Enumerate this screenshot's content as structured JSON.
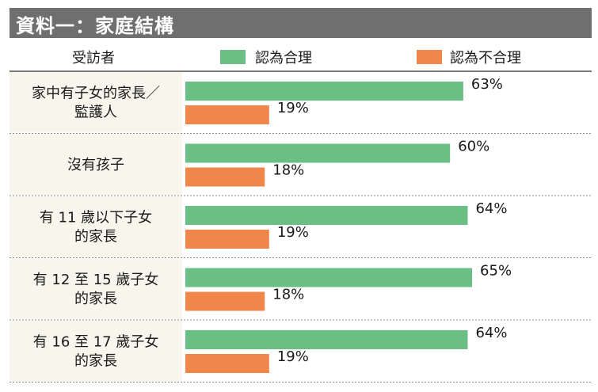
{
  "title": "資料一：家庭結構",
  "header": {
    "respondent_label": "受訪者",
    "legend": [
      {
        "name": "認為合理",
        "color": "#6cbf84"
      },
      {
        "name": "認為不合理",
        "color": "#f0874a"
      }
    ]
  },
  "chart_data": {
    "type": "bar",
    "orientation": "horizontal",
    "title": "資料一：家庭結構",
    "categories": [
      [
        "家中有子女的家長／",
        "監護人"
      ],
      [
        "沒有孩子"
      ],
      [
        "有 11 歲以下子女",
        "的家長"
      ],
      [
        "有 12 至 15 歲子女",
        "的家長"
      ],
      [
        "有 16 至 17 歲子女",
        "的家長"
      ]
    ],
    "series": [
      {
        "name": "認為合理",
        "color": "#6cbf84",
        "values": [
          63,
          60,
          64,
          65,
          64
        ]
      },
      {
        "name": "認為不合理",
        "color": "#f0874a",
        "values": [
          19,
          18,
          19,
          18,
          19
        ]
      }
    ],
    "value_suffix": "%",
    "xlim": [
      0,
      100
    ],
    "grid": false,
    "legend_position": "top"
  }
}
